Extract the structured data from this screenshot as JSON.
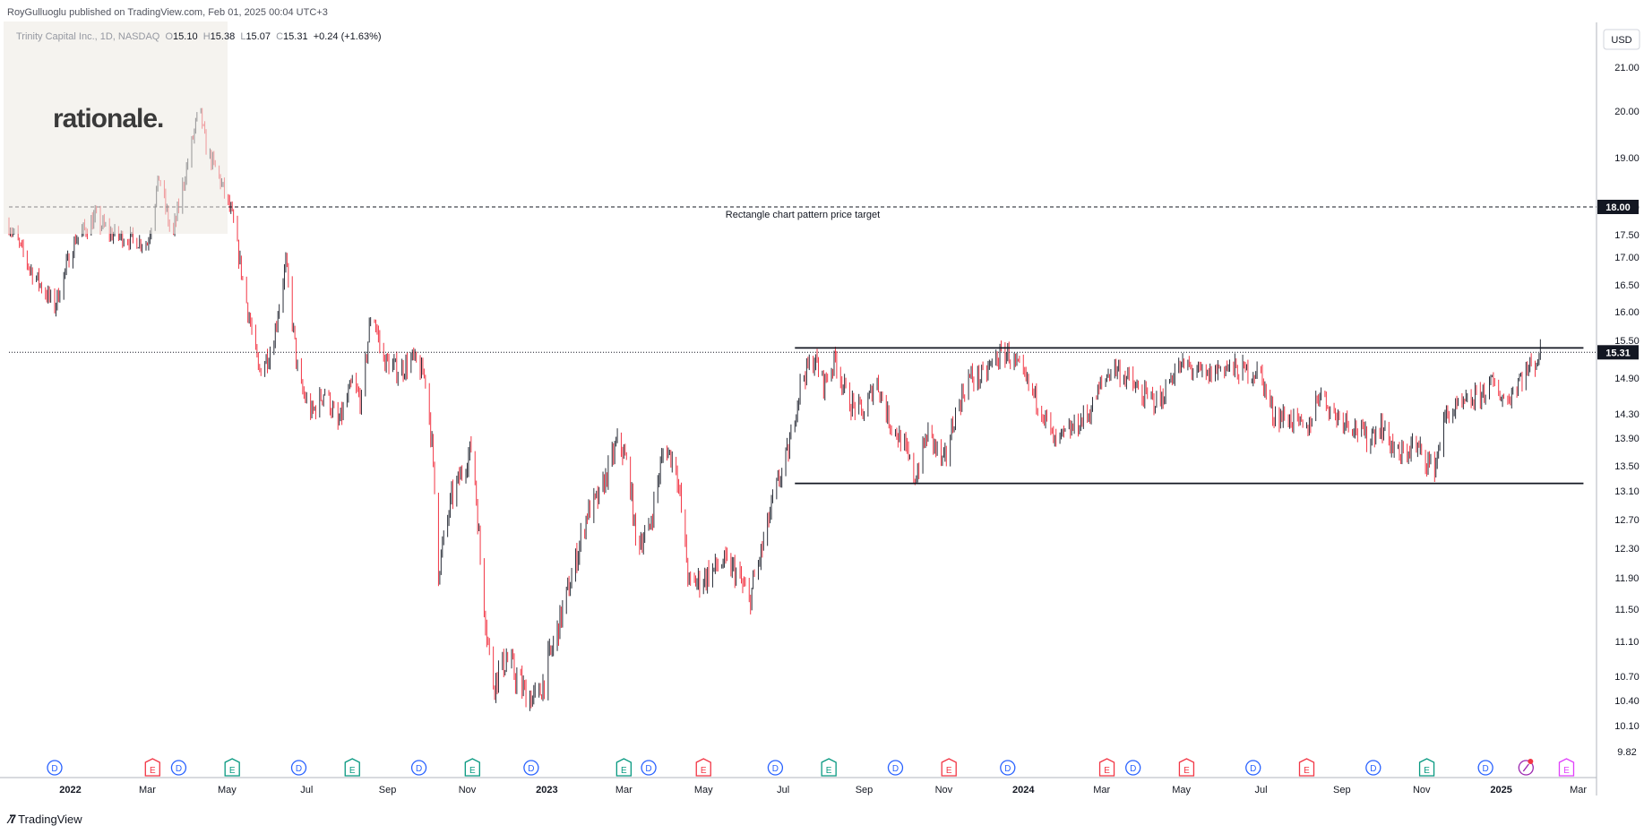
{
  "header": {
    "published": "RoyGulluoglu published on TradingView.com, Feb 01, 2025 00:04 UTC+3"
  },
  "legend": {
    "symbol": "Trinity Capital Inc., 1D, NASDAQ",
    "open_label": "O",
    "open": "15.10",
    "high_label": "H",
    "high": "15.38",
    "low_label": "L",
    "low": "15.07",
    "close_label": "C",
    "close": "15.31",
    "change": "+0.24 (+1.63%)"
  },
  "logo_text": "rationale.",
  "footer": {
    "brand": "TradingView"
  },
  "colors": {
    "up": "#2a2e39",
    "down": "#f23645",
    "earnings": "#089981",
    "dividend": "#2962ff",
    "split": "#e040fb"
  },
  "chart_data": {
    "type": "candlestick",
    "currency": "USD",
    "y_ticks": [
      "21.00",
      "20.00",
      "19.00",
      "18.00",
      "17.50",
      "17.00",
      "16.50",
      "16.00",
      "15.50",
      "14.90",
      "14.30",
      "13.90",
      "13.50",
      "13.10",
      "12.70",
      "12.30",
      "11.90",
      "11.50",
      "11.10",
      "10.70",
      "10.40",
      "10.10",
      "9.82"
    ],
    "x_ticks": [
      "2022",
      "Mar",
      "May",
      "Jul",
      "Sep",
      "Nov",
      "2023",
      "Mar",
      "May",
      "Jul",
      "Sep",
      "Nov",
      "2024",
      "Mar",
      "May",
      "Jul",
      "Sep",
      "Nov",
      "2025",
      "Mar"
    ],
    "x_range": [
      "2021-11-15",
      "2025-03-15"
    ],
    "price_labels": {
      "target": "18.00",
      "last": "15.31"
    },
    "annotations": [
      {
        "text": "Rectangle chart pattern price target",
        "price": 18.0,
        "from": "2021-11-15",
        "to": "2025-03-15",
        "style": "dashed"
      },
      {
        "text": "",
        "price": 15.38,
        "from": "2023-07-10",
        "to": "2025-03-05",
        "style": "solid"
      },
      {
        "text": "",
        "price": 13.22,
        "from": "2023-07-10",
        "to": "2025-03-05",
        "style": "solid"
      }
    ],
    "price_path": [
      [
        "2021-11-15",
        17.7
      ],
      [
        "2021-12-01",
        16.8
      ],
      [
        "2021-12-20",
        16.1
      ],
      [
        "2022-01-05",
        17.4
      ],
      [
        "2022-01-20",
        17.8
      ],
      [
        "2022-02-01",
        17.5
      ],
      [
        "2022-02-15",
        17.4
      ],
      [
        "2022-03-01",
        17.3
      ],
      [
        "2022-03-10",
        18.6
      ],
      [
        "2022-03-20",
        17.4
      ],
      [
        "2022-04-01",
        18.9
      ],
      [
        "2022-04-10",
        20.1
      ],
      [
        "2022-04-15",
        19.2
      ],
      [
        "2022-04-25",
        18.6
      ],
      [
        "2022-05-05",
        17.8
      ],
      [
        "2022-05-15",
        16.3
      ],
      [
        "2022-05-25",
        15.0
      ],
      [
        "2022-06-05",
        15.4
      ],
      [
        "2022-06-15",
        16.9
      ],
      [
        "2022-06-25",
        14.8
      ],
      [
        "2022-07-05",
        14.3
      ],
      [
        "2022-07-15",
        14.7
      ],
      [
        "2022-07-25",
        14.1
      ],
      [
        "2022-08-05",
        14.8
      ],
      [
        "2022-08-12",
        14.5
      ],
      [
        "2022-08-20",
        16.1
      ],
      [
        "2022-08-28",
        15.2
      ],
      [
        "2022-09-10",
        15.0
      ],
      [
        "2022-09-20",
        15.2
      ],
      [
        "2022-09-30",
        14.9
      ],
      [
        "2022-10-05",
        13.8
      ],
      [
        "2022-10-10",
        12.0
      ],
      [
        "2022-10-20",
        13.0
      ],
      [
        "2022-11-01",
        13.6
      ],
      [
        "2022-11-05",
        13.8
      ],
      [
        "2022-11-12",
        11.9
      ],
      [
        "2022-11-20",
        10.6
      ],
      [
        "2022-12-01",
        10.9
      ],
      [
        "2022-12-15",
        10.5
      ],
      [
        "2022-12-25",
        10.4
      ],
      [
        "2023-01-05",
        11.0
      ],
      [
        "2023-01-20",
        11.9
      ],
      [
        "2023-02-01",
        12.8
      ],
      [
        "2023-02-10",
        13.0
      ],
      [
        "2023-02-25",
        13.9
      ],
      [
        "2023-03-05",
        13.4
      ],
      [
        "2023-03-10",
        12.4
      ],
      [
        "2023-03-20",
        12.5
      ],
      [
        "2023-04-01",
        13.8
      ],
      [
        "2023-04-10",
        13.5
      ],
      [
        "2023-04-20",
        11.8
      ],
      [
        "2023-05-01",
        11.9
      ],
      [
        "2023-05-15",
        12.1
      ],
      [
        "2023-05-25",
        12.0
      ],
      [
        "2023-06-05",
        11.6
      ],
      [
        "2023-06-15",
        12.3
      ],
      [
        "2023-06-25",
        13.1
      ],
      [
        "2023-07-05",
        13.7
      ],
      [
        "2023-07-15",
        14.9
      ],
      [
        "2023-07-25",
        15.2
      ],
      [
        "2023-08-01",
        14.8
      ],
      [
        "2023-08-10",
        15.2
      ],
      [
        "2023-08-20",
        14.5
      ],
      [
        "2023-09-01",
        14.3
      ],
      [
        "2023-09-10",
        14.9
      ],
      [
        "2023-09-20",
        14.2
      ],
      [
        "2023-10-01",
        13.8
      ],
      [
        "2023-10-10",
        13.3
      ],
      [
        "2023-10-20",
        14.0
      ],
      [
        "2023-11-01",
        13.5
      ],
      [
        "2023-11-10",
        14.3
      ],
      [
        "2023-11-20",
        14.9
      ],
      [
        "2023-12-01",
        14.9
      ],
      [
        "2023-12-10",
        15.2
      ],
      [
        "2023-12-20",
        15.3
      ],
      [
        "2024-01-01",
        14.9
      ],
      [
        "2024-01-15",
        14.4
      ],
      [
        "2024-01-25",
        13.8
      ],
      [
        "2024-02-05",
        14.0
      ],
      [
        "2024-02-20",
        14.3
      ],
      [
        "2024-03-01",
        14.8
      ],
      [
        "2024-03-10",
        15.1
      ],
      [
        "2024-03-20",
        14.9
      ],
      [
        "2024-04-01",
        14.6
      ],
      [
        "2024-04-15",
        14.5
      ],
      [
        "2024-04-25",
        15.0
      ],
      [
        "2024-05-05",
        15.1
      ],
      [
        "2024-05-20",
        14.9
      ],
      [
        "2024-06-01",
        15.1
      ],
      [
        "2024-06-15",
        15.0
      ],
      [
        "2024-06-30",
        15.0
      ],
      [
        "2024-07-10",
        14.3
      ],
      [
        "2024-07-25",
        14.2
      ],
      [
        "2024-08-05",
        14.0
      ],
      [
        "2024-08-15",
        14.7
      ],
      [
        "2024-08-25",
        14.3
      ],
      [
        "2024-09-05",
        14.2
      ],
      [
        "2024-09-20",
        13.9
      ],
      [
        "2024-10-01",
        14.1
      ],
      [
        "2024-10-15",
        13.6
      ],
      [
        "2024-10-25",
        13.8
      ],
      [
        "2024-11-05",
        13.6
      ],
      [
        "2024-11-10",
        13.4
      ],
      [
        "2024-11-20",
        14.3
      ],
      [
        "2024-12-01",
        14.4
      ],
      [
        "2024-12-15",
        14.6
      ],
      [
        "2024-12-25",
        14.8
      ],
      [
        "2025-01-05",
        14.5
      ],
      [
        "2025-01-15",
        14.9
      ],
      [
        "2025-01-25",
        15.1
      ],
      [
        "2025-01-31",
        15.31
      ]
    ],
    "events": [
      {
        "type": "D",
        "date": "2021-12-20"
      },
      {
        "type": "E",
        "date": "2022-03-05"
      },
      {
        "type": "D",
        "date": "2022-03-25"
      },
      {
        "type": "E",
        "date": "2022-05-05"
      },
      {
        "type": "D",
        "date": "2022-06-25"
      },
      {
        "type": "E",
        "date": "2022-08-05"
      },
      {
        "type": "D",
        "date": "2022-09-25"
      },
      {
        "type": "E",
        "date": "2022-11-05"
      },
      {
        "type": "D",
        "date": "2022-12-20"
      },
      {
        "type": "E",
        "date": "2023-03-01"
      },
      {
        "type": "D",
        "date": "2023-03-20"
      },
      {
        "type": "E",
        "date": "2023-05-01"
      },
      {
        "type": "D",
        "date": "2023-06-25"
      },
      {
        "type": "E",
        "date": "2023-08-05"
      },
      {
        "type": "D",
        "date": "2023-09-25"
      },
      {
        "type": "E",
        "date": "2023-11-05"
      },
      {
        "type": "D",
        "date": "2023-12-20"
      },
      {
        "type": "E",
        "date": "2024-03-05"
      },
      {
        "type": "D",
        "date": "2024-03-25"
      },
      {
        "type": "E",
        "date": "2024-05-05"
      },
      {
        "type": "D",
        "date": "2024-06-25"
      },
      {
        "type": "E",
        "date": "2024-08-05"
      },
      {
        "type": "D",
        "date": "2024-09-25"
      },
      {
        "type": "E",
        "date": "2024-11-05"
      },
      {
        "type": "D",
        "date": "2024-12-20"
      },
      {
        "type": "S",
        "date": "2025-01-20"
      },
      {
        "type": "E",
        "date": "2025-02-20"
      }
    ]
  }
}
